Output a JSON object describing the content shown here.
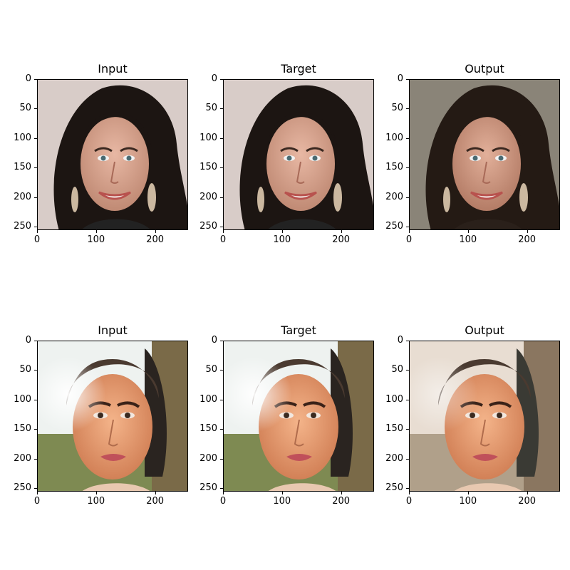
{
  "panels": [
    {
      "title": "Input",
      "variant": "woman-dark-hair",
      "xticks": [
        "0",
        "100",
        "200"
      ],
      "yticks": [
        "0",
        "50",
        "100",
        "150",
        "200",
        "250"
      ]
    },
    {
      "title": "Target",
      "variant": "woman-dark-hair",
      "xticks": [
        "0",
        "100",
        "200"
      ],
      "yticks": [
        "0",
        "50",
        "100",
        "150",
        "200",
        "250"
      ]
    },
    {
      "title": "Output",
      "variant": "woman-dark-hair-output",
      "xticks": [
        "0",
        "100",
        "200"
      ],
      "yticks": [
        "0",
        "50",
        "100",
        "150",
        "200",
        "250"
      ]
    },
    {
      "title": "Input",
      "variant": "woman-slicked-hair",
      "xticks": [
        "0",
        "100",
        "200"
      ],
      "yticks": [
        "0",
        "50",
        "100",
        "150",
        "200",
        "250"
      ]
    },
    {
      "title": "Target",
      "variant": "woman-slicked-hair",
      "xticks": [
        "0",
        "100",
        "200"
      ],
      "yticks": [
        "0",
        "50",
        "100",
        "150",
        "200",
        "250"
      ]
    },
    {
      "title": "Output",
      "variant": "woman-slicked-hair-output",
      "xticks": [
        "0",
        "100",
        "200"
      ],
      "yticks": [
        "0",
        "50",
        "100",
        "150",
        "200",
        "250"
      ]
    }
  ]
}
